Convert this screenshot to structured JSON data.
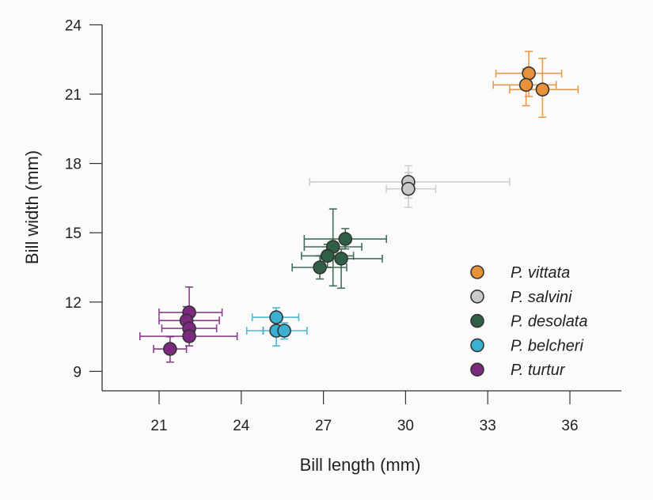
{
  "chart_data": {
    "type": "scatter",
    "xlabel": "Bill length (mm)",
    "ylabel": "Bill width (mm)",
    "xlim": [
      19.2,
      38.5
    ],
    "ylim": [
      8.2,
      24
    ],
    "xticks": [
      21,
      24,
      27,
      30,
      33,
      36
    ],
    "yticks": [
      9,
      12,
      15,
      18,
      21,
      24
    ],
    "grid": false,
    "legend_placement": "bottom-right",
    "error_bars": true,
    "series": [
      {
        "name": "P. vittata",
        "color": "#e8913b",
        "points": [
          {
            "x": 34.5,
            "y": 21.9,
            "xerr": [
              33.3,
              35.7
            ],
            "yerr": [
              20.9,
              22.85
            ]
          },
          {
            "x": 34.4,
            "y": 21.4,
            "xerr": [
              33.2,
              35.5
            ],
            "yerr": [
              20.5,
              22.1
            ]
          },
          {
            "x": 35.0,
            "y": 21.2,
            "xerr": [
              33.8,
              36.3
            ],
            "yerr": [
              20.0,
              22.55
            ]
          }
        ]
      },
      {
        "name": "P. salvini",
        "color": "#c9c9c9",
        "points": [
          {
            "x": 30.1,
            "y": 17.2,
            "xerr": [
              26.5,
              33.8
            ],
            "yerr": [
              16.5,
              17.9
            ]
          },
          {
            "x": 30.1,
            "y": 16.9,
            "xerr": [
              29.3,
              31.1
            ],
            "yerr": [
              16.1,
              17.6
            ]
          }
        ]
      },
      {
        "name": "P. desolata",
        "color": "#2f5f45",
        "points": [
          {
            "x": 27.8,
            "y": 14.73,
            "xerr": [
              26.3,
              29.3
            ],
            "yerr": [
              14.3,
              15.18
            ]
          },
          {
            "x": 27.35,
            "y": 14.39,
            "xerr": [
              26.3,
              28.4
            ],
            "yerr": [
              12.7,
              16.03
            ]
          },
          {
            "x": 27.15,
            "y": 14.0,
            "xerr": [
              26.2,
              28.1
            ],
            "yerr": [
              13.5,
              14.5
            ]
          },
          {
            "x": 27.65,
            "y": 13.88,
            "xerr": [
              26.9,
              29.15
            ],
            "yerr": [
              12.6,
              14.3
            ]
          },
          {
            "x": 26.87,
            "y": 13.5,
            "xerr": [
              25.86,
              27.85
            ],
            "yerr": [
              13.0,
              14.0
            ]
          }
        ]
      },
      {
        "name": "P. belcheri",
        "color": "#3bb1d2",
        "points": [
          {
            "x": 25.28,
            "y": 11.34,
            "xerr": [
              24.4,
              26.1
            ],
            "yerr": [
              10.9,
              11.75
            ]
          },
          {
            "x": 25.28,
            "y": 10.76,
            "xerr": [
              24.2,
              24.8
            ],
            "yerr": [
              10.1,
              11.2
            ]
          },
          {
            "x": 25.57,
            "y": 10.76,
            "xerr": [
              24.8,
              26.4
            ],
            "yerr": [
              10.4,
              11.1
            ]
          }
        ]
      },
      {
        "name": "P. turtur",
        "color": "#7b2a7f",
        "points": [
          {
            "x": 22.1,
            "y": 11.55,
            "xerr": [
              21.0,
              23.3
            ],
            "yerr": [
              10.9,
              12.65
            ]
          },
          {
            "x": 22.0,
            "y": 11.2,
            "xerr": [
              21.0,
              23.2
            ],
            "yerr": [
              10.6,
              11.8
            ]
          },
          {
            "x": 22.1,
            "y": 10.86,
            "xerr": [
              21.1,
              23.1
            ],
            "yerr": [
              10.3,
              11.4
            ]
          },
          {
            "x": 22.1,
            "y": 10.52,
            "xerr": [
              20.3,
              23.85
            ],
            "yerr": [
              10.1,
              11.0
            ]
          },
          {
            "x": 21.4,
            "y": 9.97,
            "xerr": [
              20.8,
              22.0
            ],
            "yerr": [
              9.4,
              10.5
            ]
          }
        ]
      }
    ]
  }
}
